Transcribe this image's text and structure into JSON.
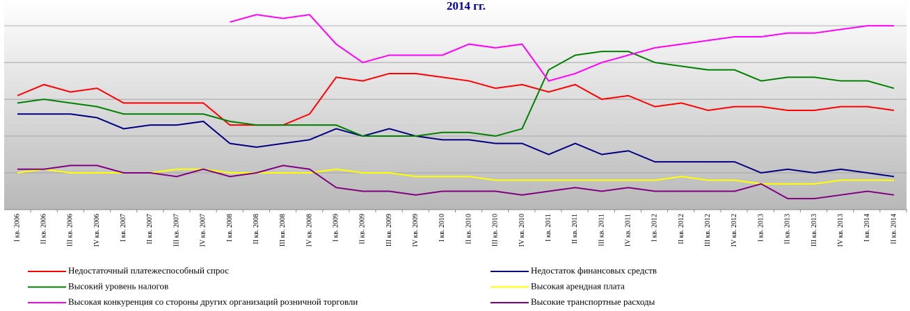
{
  "chart_data": {
    "type": "line",
    "title": "2014 гг.",
    "categories": [
      "I кв. 2006",
      "II кв. 2006",
      "III кв. 2006",
      "IV кв. 2006",
      "I кв. 2007",
      "II кв. 2007",
      "III кв. 2007",
      "IV кв. 2007",
      "I кв. 2008",
      "II кв. 2008",
      "III кв. 2008",
      "IV кв. 2008",
      "I кв. 2009",
      "II кв. 2009",
      "III кв. 2009",
      "IV кв. 2009",
      "I кв. 2010",
      "II кв. 2010",
      "III кв. 2010",
      "IV кв. 2010",
      "I кв. 2011",
      "II кв. 2011",
      "III кв. 2011",
      "IV кв. 2011",
      "I кв. 2012",
      "II кв. 2012",
      "III кв. 2012",
      "IV кв. 2012",
      "I кв. 2013",
      "II кв. 2013",
      "III кв. 2013",
      "IV кв. 2013",
      "I кв. 2014",
      "II кв. 2014"
    ],
    "series": [
      {
        "name": "Недостаточный платежеспособный спрос",
        "color": "#ff0000",
        "values": [
          31,
          34,
          32,
          33,
          29,
          29,
          29,
          29,
          23,
          23,
          23,
          26,
          36,
          35,
          37,
          37,
          36,
          35,
          33,
          34,
          32,
          34,
          30,
          31,
          28,
          29,
          27,
          28,
          28,
          27,
          27,
          28,
          28,
          27
        ]
      },
      {
        "name": "Недостаток финансовых средств",
        "color": "#000080",
        "values": [
          26,
          26,
          26,
          25,
          22,
          23,
          23,
          24,
          18,
          17,
          18,
          19,
          22,
          20,
          22,
          20,
          19,
          19,
          18,
          18,
          15,
          18,
          15,
          16,
          13,
          13,
          13,
          13,
          10,
          11,
          10,
          11,
          10,
          9
        ]
      },
      {
        "name": "Высокий уровень налогов",
        "color": "#008000",
        "values": [
          29,
          30,
          29,
          28,
          26,
          26,
          26,
          26,
          24,
          23,
          23,
          23,
          23,
          20,
          20,
          20,
          21,
          21,
          20,
          22,
          38,
          42,
          43,
          43,
          40,
          39,
          38,
          38,
          35,
          36,
          36,
          35,
          35,
          33
        ]
      },
      {
        "name": "Высокая арендная плата",
        "color": "#ffff00",
        "values": [
          10,
          11,
          10,
          10,
          10,
          10,
          11,
          11,
          10,
          10,
          10,
          10,
          11,
          10,
          10,
          9,
          9,
          9,
          8,
          8,
          8,
          8,
          8,
          8,
          8,
          9,
          8,
          8,
          7,
          7,
          7,
          8,
          8,
          8
        ]
      },
      {
        "name": "Высокая конкуренция со стороны других организаций розничной торговли",
        "color": "#ff00ff",
        "values": [
          null,
          null,
          null,
          null,
          null,
          null,
          null,
          null,
          51,
          53,
          52,
          53,
          45,
          40,
          42,
          42,
          42,
          45,
          44,
          45,
          35,
          37,
          40,
          42,
          44,
          45,
          46,
          47,
          47,
          48,
          48,
          49,
          50,
          50
        ]
      },
      {
        "name": "Высокие транспортные расходы",
        "color": "#800080",
        "values": [
          11,
          11,
          12,
          12,
          10,
          10,
          9,
          11,
          9,
          10,
          12,
          11,
          6,
          5,
          5,
          4,
          5,
          5,
          5,
          4,
          5,
          6,
          5,
          6,
          5,
          5,
          5,
          5,
          7,
          3,
          3,
          4,
          5,
          4
        ]
      }
    ],
    "ylim": [
      0,
      57
    ],
    "yticks": [
      0,
      10,
      20,
      30,
      40,
      50
    ],
    "grid": true
  }
}
